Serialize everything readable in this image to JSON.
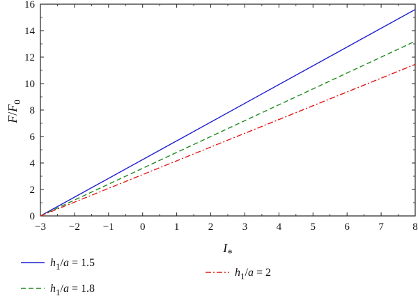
{
  "chart_data": {
    "type": "line",
    "xlabel": "I*",
    "ylabel": "F/F0",
    "xlim": [
      -3,
      8
    ],
    "ylim": [
      0,
      16
    ],
    "xticks": [
      -3,
      -2,
      -1,
      0,
      1,
      2,
      3,
      4,
      5,
      6,
      7,
      8
    ],
    "yticks": [
      0,
      2,
      4,
      6,
      8,
      10,
      12,
      14,
      16
    ],
    "x_tick_labels": [
      "−3",
      "−2",
      "−1",
      "0",
      "1",
      "2",
      "3",
      "4",
      "5",
      "6",
      "7",
      "8"
    ],
    "y_tick_labels": [
      "0",
      "2",
      "4",
      "6",
      "8",
      "10",
      "12",
      "14",
      "16"
    ],
    "grid": false,
    "legend_placement": "below",
    "series": [
      {
        "name": "h1/a = 1.5",
        "style": "solid",
        "color": "#1f1fd1",
        "x": [
          -3,
          8
        ],
        "y": [
          0,
          15.6
        ]
      },
      {
        "name": "h1/a = 1.8",
        "style": "dashed",
        "color": "#1e8a1e",
        "x": [
          -3,
          8
        ],
        "y": [
          0,
          13.2
        ]
      },
      {
        "name": "h1/a = 2",
        "style": "dashdot",
        "color": "#e01a1a",
        "x": [
          -3,
          8
        ],
        "y": [
          0,
          11.45
        ]
      }
    ],
    "legend": [
      {
        "var": "h",
        "sub": "1",
        "rest": "/",
        "var2": "a",
        "value": " = 1.5"
      },
      {
        "var": "h",
        "sub": "1",
        "rest": "/",
        "var2": "a",
        "value": " = 1.8"
      },
      {
        "var": "h",
        "sub": "1",
        "rest": "/",
        "var2": "a",
        "value": " = 2"
      }
    ],
    "axis_title_parts": {
      "x": {
        "main": "I",
        "sub": "*"
      },
      "y": {
        "main": "F",
        "slash": "/",
        "main2": "F",
        "sub": "0"
      }
    }
  }
}
